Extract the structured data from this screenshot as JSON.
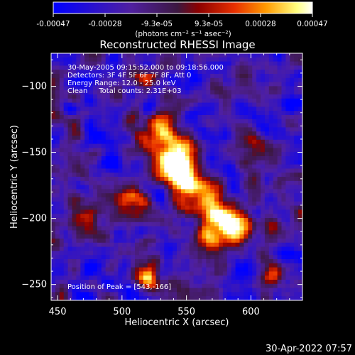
{
  "chart_data": {
    "type": "heatmap",
    "title": "Reconstructed RHESSI Image",
    "xlabel": "Heliocentric X (arcsec)",
    "ylabel": "Heliocentric Y (arcsec)",
    "xlim": [
      445,
      640
    ],
    "ylim": [
      -262,
      -75
    ],
    "x_ticks": [
      "450",
      "500",
      "550",
      "600"
    ],
    "y_ticks": [
      "-100",
      "-150",
      "-200",
      "-250"
    ],
    "colorbar": {
      "tick_labels": [
        "-0.00047",
        "-0.00028",
        "-9.3e-05",
        "9.3e-05",
        "0.00028",
        "0.00047"
      ],
      "unit_label": "(photons cm⁻² s⁻¹ asec⁻²)",
      "range": [
        -0.00047,
        0.00047
      ]
    },
    "info_lines": [
      "30-May-2005 09:15:52.000 to 09:18:56.000",
      "Detectors: 3F 4F 5F 6F 7F 8F, Att 0",
      "Energy Range: 12.0 - 25.0 keV",
      "Clean     Total counts: 2.31E+03"
    ],
    "peak_label": "Position of Peak = [543,-166]",
    "peak": {
      "x": 543,
      "y": -166
    },
    "colormap": [
      "#0000ff",
      "#5020a0",
      "#3c1840",
      "#8c0000",
      "#e83000",
      "#ff9a00",
      "#ffff80",
      "#ffffff"
    ]
  },
  "footer": {
    "date": "30-Apr-2022 07:57"
  }
}
